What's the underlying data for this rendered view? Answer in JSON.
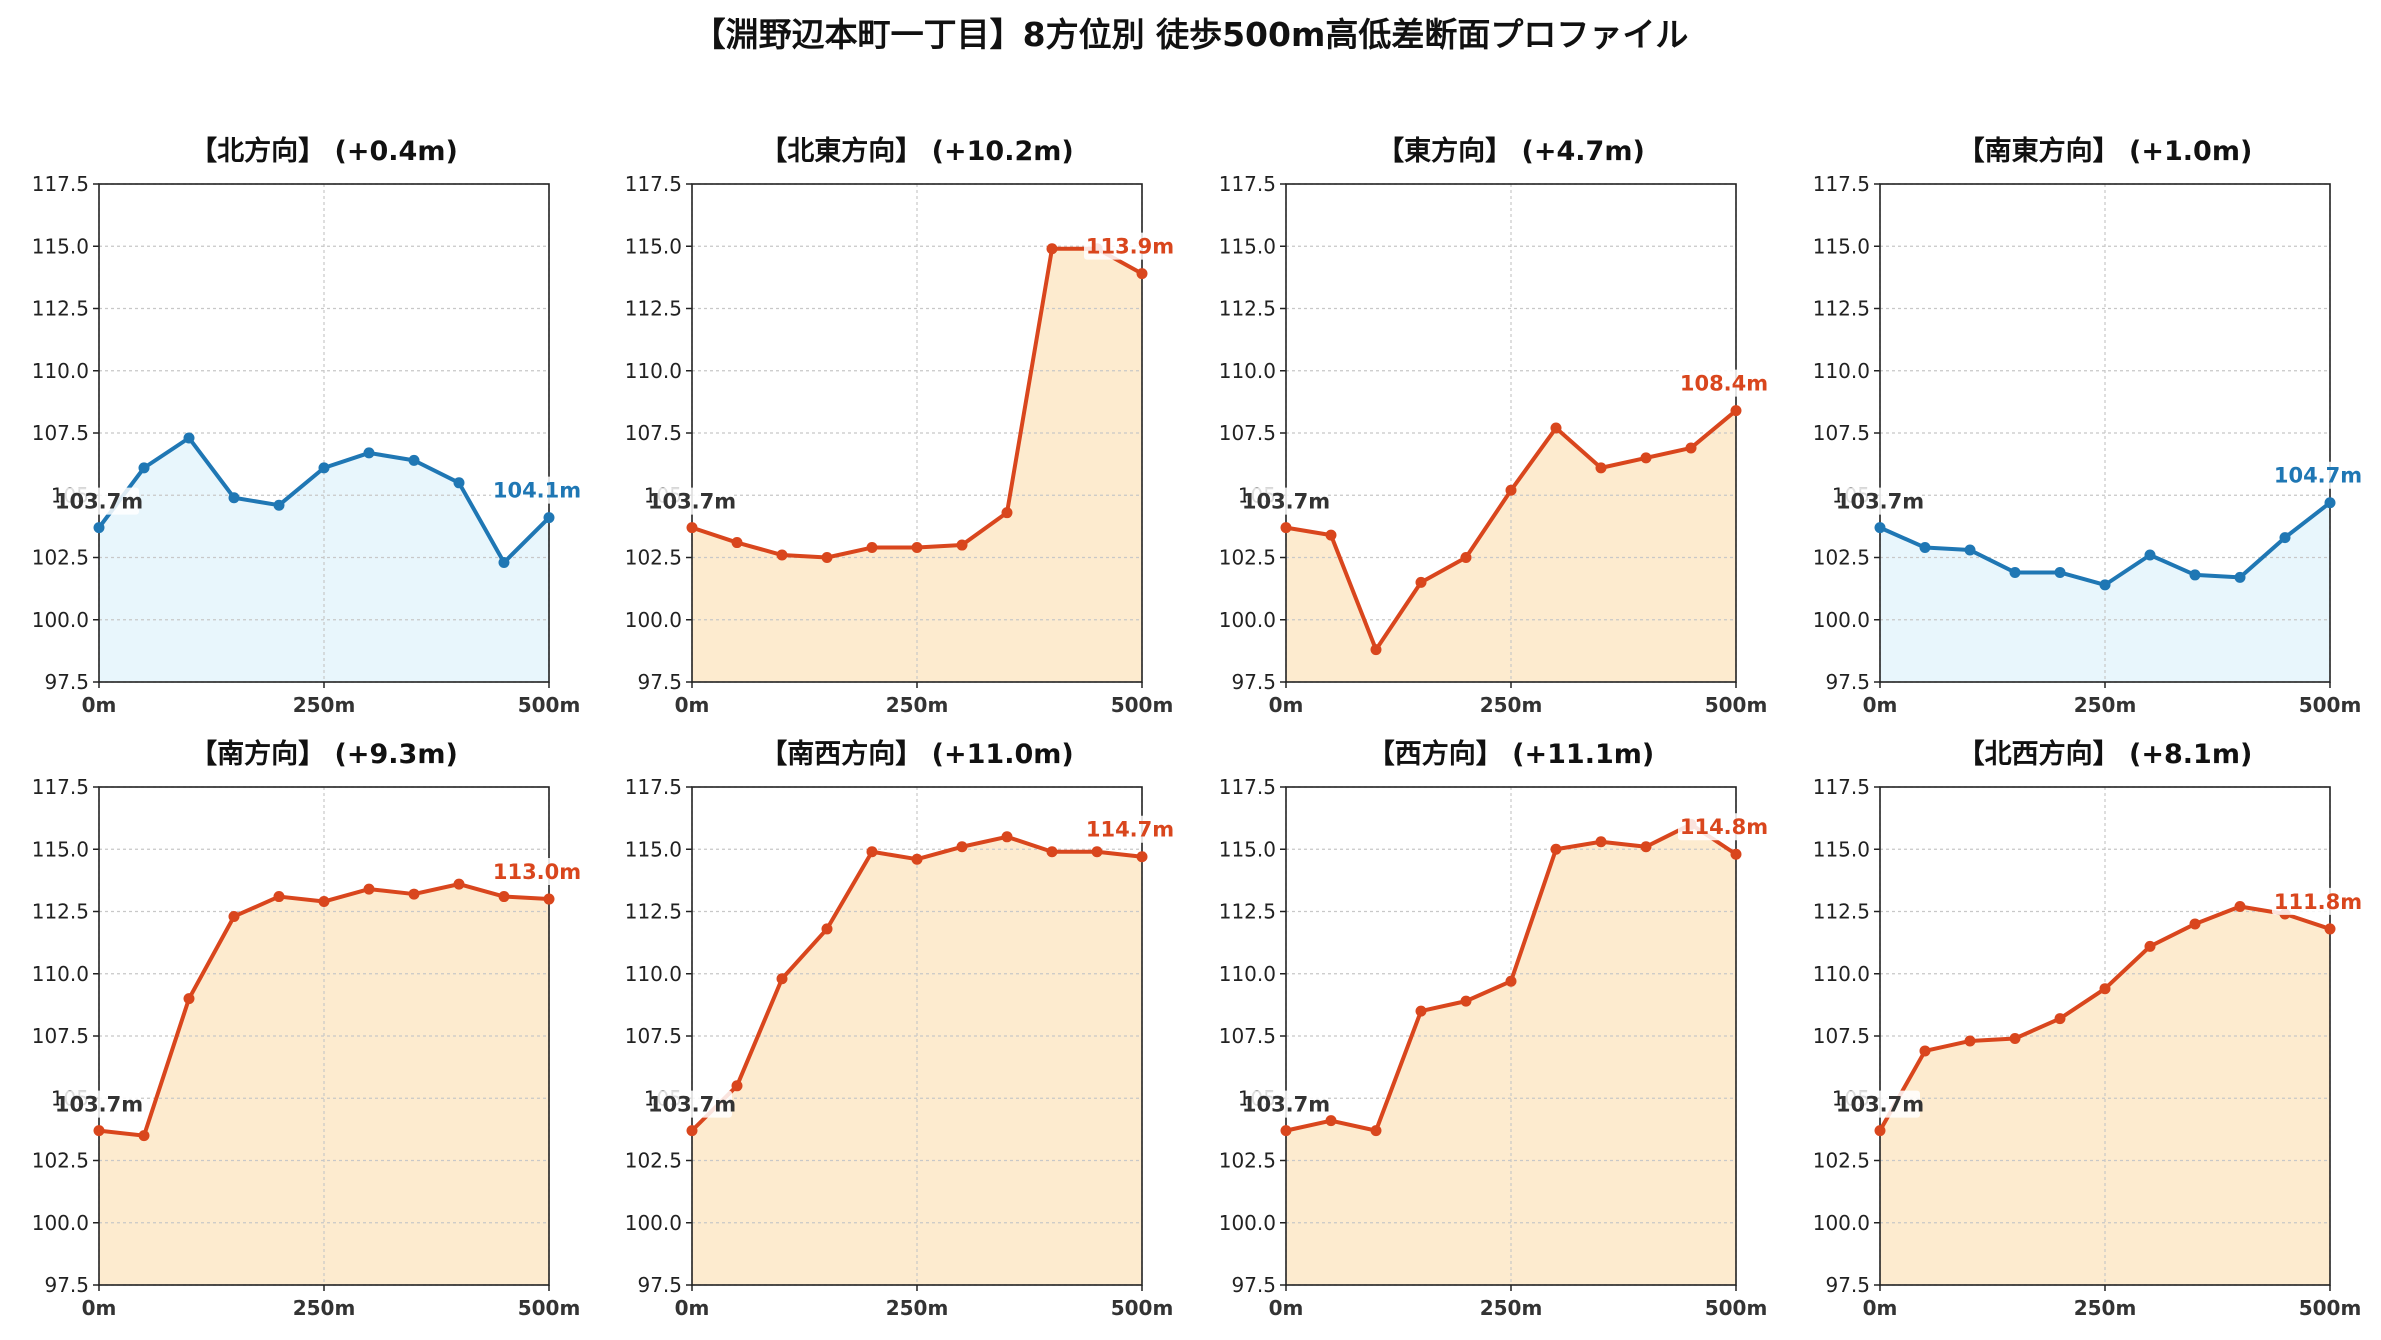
{
  "title": "【淵野辺本町一丁目】8方位別 徒歩500m高低差断面プロファイル",
  "colors": {
    "down": "#1f77b4",
    "down_fill": "#e8f6fc",
    "up": "#d9461d",
    "up_fill": "#fdebcf",
    "grid": "#c8c8c8"
  },
  "chart_data": [
    {
      "type": "line",
      "title": "【北方向】 (+0.4m)",
      "trend": "down",
      "x": [
        0,
        50,
        100,
        150,
        200,
        250,
        300,
        350,
        400,
        450,
        500
      ],
      "y": [
        103.7,
        106.1,
        107.3,
        104.9,
        104.6,
        106.1,
        106.7,
        106.4,
        105.5,
        102.3,
        104.1
      ],
      "start_label": "103.7m",
      "end_label": "104.1m",
      "xticks": [
        "0m",
        "250m",
        "500m"
      ],
      "yticks": [
        "97.5",
        "100.0",
        "102.5",
        "105",
        "107.5",
        "110.0",
        "112.5",
        "115.0",
        "117.5"
      ],
      "ylim": [
        97.5,
        117.5
      ],
      "xlim": [
        0,
        500
      ],
      "grid": true
    },
    {
      "type": "line",
      "title": "【北東方向】 (+10.2m)",
      "trend": "up",
      "x": [
        0,
        50,
        100,
        150,
        200,
        250,
        300,
        350,
        400,
        450,
        500
      ],
      "y": [
        103.7,
        103.1,
        102.6,
        102.5,
        102.9,
        102.9,
        103.0,
        104.3,
        114.9,
        114.9,
        113.9
      ],
      "start_label": "103.7m",
      "end_label": "113.9m",
      "xticks": [
        "0m",
        "250m",
        "500m"
      ],
      "yticks": [
        "97.5",
        "100.0",
        "102.5",
        "105",
        "107.5",
        "110.0",
        "112.5",
        "115.0",
        "117.5"
      ],
      "ylim": [
        97.5,
        117.5
      ],
      "xlim": [
        0,
        500
      ],
      "grid": true
    },
    {
      "type": "line",
      "title": "【東方向】 (+4.7m)",
      "trend": "up",
      "x": [
        0,
        50,
        100,
        150,
        200,
        250,
        300,
        350,
        400,
        450,
        500
      ],
      "y": [
        103.7,
        103.4,
        98.8,
        101.5,
        102.5,
        105.2,
        107.7,
        106.1,
        106.5,
        106.9,
        108.4
      ],
      "start_label": "103.7m",
      "end_label": "108.4m",
      "xticks": [
        "0m",
        "250m",
        "500m"
      ],
      "yticks": [
        "97.5",
        "100.0",
        "102.5",
        "105",
        "107.5",
        "110.0",
        "112.5",
        "115.0",
        "117.5"
      ],
      "ylim": [
        97.5,
        117.5
      ],
      "xlim": [
        0,
        500
      ],
      "grid": true
    },
    {
      "type": "line",
      "title": "【南東方向】 (+1.0m)",
      "trend": "down",
      "x": [
        0,
        50,
        100,
        150,
        200,
        250,
        300,
        350,
        400,
        450,
        500
      ],
      "y": [
        103.7,
        102.9,
        102.8,
        101.9,
        101.9,
        101.4,
        102.6,
        101.8,
        101.7,
        103.3,
        104.7
      ],
      "start_label": "103.7m",
      "end_label": "104.7m",
      "xticks": [
        "0m",
        "250m",
        "500m"
      ],
      "yticks": [
        "97.5",
        "100.0",
        "102.5",
        "105",
        "107.5",
        "110.0",
        "112.5",
        "115.0",
        "117.5"
      ],
      "ylim": [
        97.5,
        117.5
      ],
      "xlim": [
        0,
        500
      ],
      "grid": true
    },
    {
      "type": "line",
      "title": "【南方向】 (+9.3m)",
      "trend": "up",
      "x": [
        0,
        50,
        100,
        150,
        200,
        250,
        300,
        350,
        400,
        450,
        500
      ],
      "y": [
        103.7,
        103.5,
        109.0,
        112.3,
        113.1,
        112.9,
        113.4,
        113.2,
        113.6,
        113.1,
        113.0
      ],
      "start_label": "103.7m",
      "end_label": "113.0m",
      "xticks": [
        "0m",
        "250m",
        "500m"
      ],
      "yticks": [
        "97.5",
        "100.0",
        "102.5",
        "105",
        "107.5",
        "110.0",
        "112.5",
        "115.0",
        "117.5"
      ],
      "ylim": [
        97.5,
        117.5
      ],
      "xlim": [
        0,
        500
      ],
      "grid": true
    },
    {
      "type": "line",
      "title": "【南西方向】 (+11.0m)",
      "trend": "up",
      "x": [
        0,
        50,
        100,
        150,
        200,
        250,
        300,
        350,
        400,
        450,
        500
      ],
      "y": [
        103.7,
        105.5,
        109.8,
        111.8,
        114.9,
        114.6,
        115.1,
        115.5,
        114.9,
        114.9,
        114.7
      ],
      "start_label": "103.7m",
      "end_label": "114.7m",
      "xticks": [
        "0m",
        "250m",
        "500m"
      ],
      "yticks": [
        "97.5",
        "100.0",
        "102.5",
        "105",
        "107.5",
        "110.0",
        "112.5",
        "115.0",
        "117.5"
      ],
      "ylim": [
        97.5,
        117.5
      ],
      "xlim": [
        0,
        500
      ],
      "grid": true
    },
    {
      "type": "line",
      "title": "【西方向】 (+11.1m)",
      "trend": "up",
      "x": [
        0,
        50,
        100,
        150,
        200,
        250,
        300,
        350,
        400,
        450,
        500
      ],
      "y": [
        103.7,
        104.1,
        103.7,
        108.5,
        108.9,
        109.7,
        115.0,
        115.3,
        115.1,
        116.0,
        114.8
      ],
      "start_label": "103.7m",
      "end_label": "114.8m",
      "xticks": [
        "0m",
        "250m",
        "500m"
      ],
      "yticks": [
        "97.5",
        "100.0",
        "102.5",
        "105",
        "107.5",
        "110.0",
        "112.5",
        "115.0",
        "117.5"
      ],
      "ylim": [
        97.5,
        117.5
      ],
      "xlim": [
        0,
        500
      ],
      "grid": true
    },
    {
      "type": "line",
      "title": "【北西方向】 (+8.1m)",
      "trend": "up",
      "x": [
        0,
        50,
        100,
        150,
        200,
        250,
        300,
        350,
        400,
        450,
        500
      ],
      "y": [
        103.7,
        106.9,
        107.3,
        107.4,
        108.2,
        109.4,
        111.1,
        112.0,
        112.7,
        112.4,
        111.8
      ],
      "start_label": "103.7m",
      "end_label": "111.8m",
      "xticks": [
        "0m",
        "250m",
        "500m"
      ],
      "yticks": [
        "97.5",
        "100.0",
        "102.5",
        "105",
        "107.5",
        "110.0",
        "112.5",
        "115.0",
        "117.5"
      ],
      "ylim": [
        97.5,
        117.5
      ],
      "xlim": [
        0,
        500
      ],
      "grid": true
    }
  ]
}
